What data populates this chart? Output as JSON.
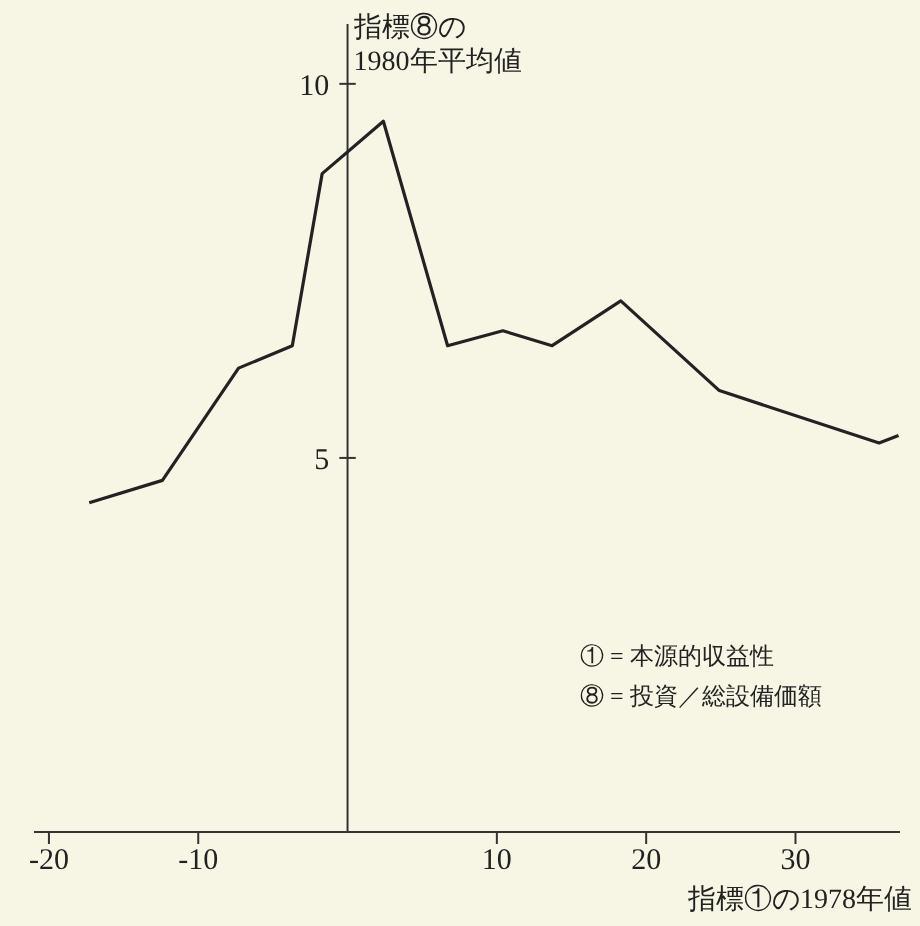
{
  "chart_data": {
    "type": "line",
    "ylabel": "指標⑧の\n1980年平均値",
    "xlabel": "指標①の1978年値",
    "annotations": [
      "① = 本源的収益性",
      "⑧ = 投資／総設備価額"
    ],
    "series": [
      {
        "color": "#222222",
        "x": [
          -17.3,
          -12.4,
          -7.3,
          -3.7,
          -1.7,
          2.4,
          6.7,
          10.4,
          13.7,
          18.3,
          24.9,
          35.6,
          36.9
        ],
        "values": [
          4.4,
          4.7,
          6.2,
          6.5,
          8.8,
          9.5,
          6.5,
          6.7,
          6.5,
          7.1,
          5.9,
          5.2,
          5.3
        ]
      }
    ],
    "xlim": [
      -21,
      37
    ],
    "ylim": [
      0,
      10.8
    ],
    "xticks": [
      -20,
      -10,
      10,
      20,
      30
    ],
    "yticks": [
      5,
      10
    ],
    "marker": "none",
    "line_style": "solid"
  }
}
